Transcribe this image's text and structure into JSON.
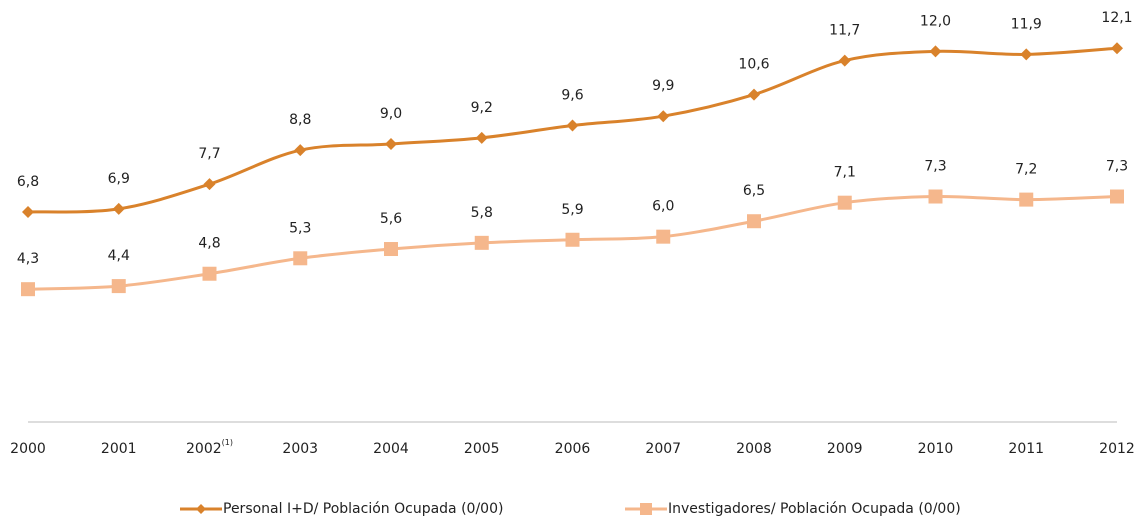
{
  "chart_data": {
    "type": "line",
    "categories": [
      "2000",
      "2001",
      "2002",
      "2003",
      "2004",
      "2005",
      "2006",
      "2007",
      "2008",
      "2009",
      "2010",
      "2011",
      "2012"
    ],
    "category_superscripts": [
      null,
      null,
      "(1)",
      null,
      null,
      null,
      null,
      null,
      null,
      null,
      null,
      null,
      null
    ],
    "series": [
      {
        "name": "Personal I+D/ Población Ocupada (0/00)",
        "color": "#d9822b",
        "marker": "diamond",
        "values": [
          6.8,
          6.9,
          7.7,
          8.8,
          9.0,
          9.2,
          9.6,
          9.9,
          10.6,
          11.7,
          12.0,
          11.9,
          12.1
        ],
        "value_labels": [
          "6,8",
          "6,9",
          "7,7",
          "8,8",
          "9,0",
          "9,2",
          "9,6",
          "9,9",
          "10,6",
          "11,7",
          "12,0",
          "11,9",
          "12,1"
        ]
      },
      {
        "name": "Investigadores/ Población Ocupada (0/00)",
        "color": "#f5b78c",
        "marker": "square",
        "values": [
          4.3,
          4.4,
          4.8,
          5.3,
          5.6,
          5.8,
          5.9,
          6.0,
          6.5,
          7.1,
          7.3,
          7.2,
          7.3
        ],
        "value_labels": [
          "4,3",
          "4,4",
          "4,8",
          "5,3",
          "5,6",
          "5,8",
          "5,9",
          "6,0",
          "6,5",
          "7,1",
          "7,3",
          "7,2",
          "7,3"
        ]
      }
    ],
    "ylim": [
      0,
      13.5
    ],
    "legend": "bottom",
    "smooth": true
  }
}
